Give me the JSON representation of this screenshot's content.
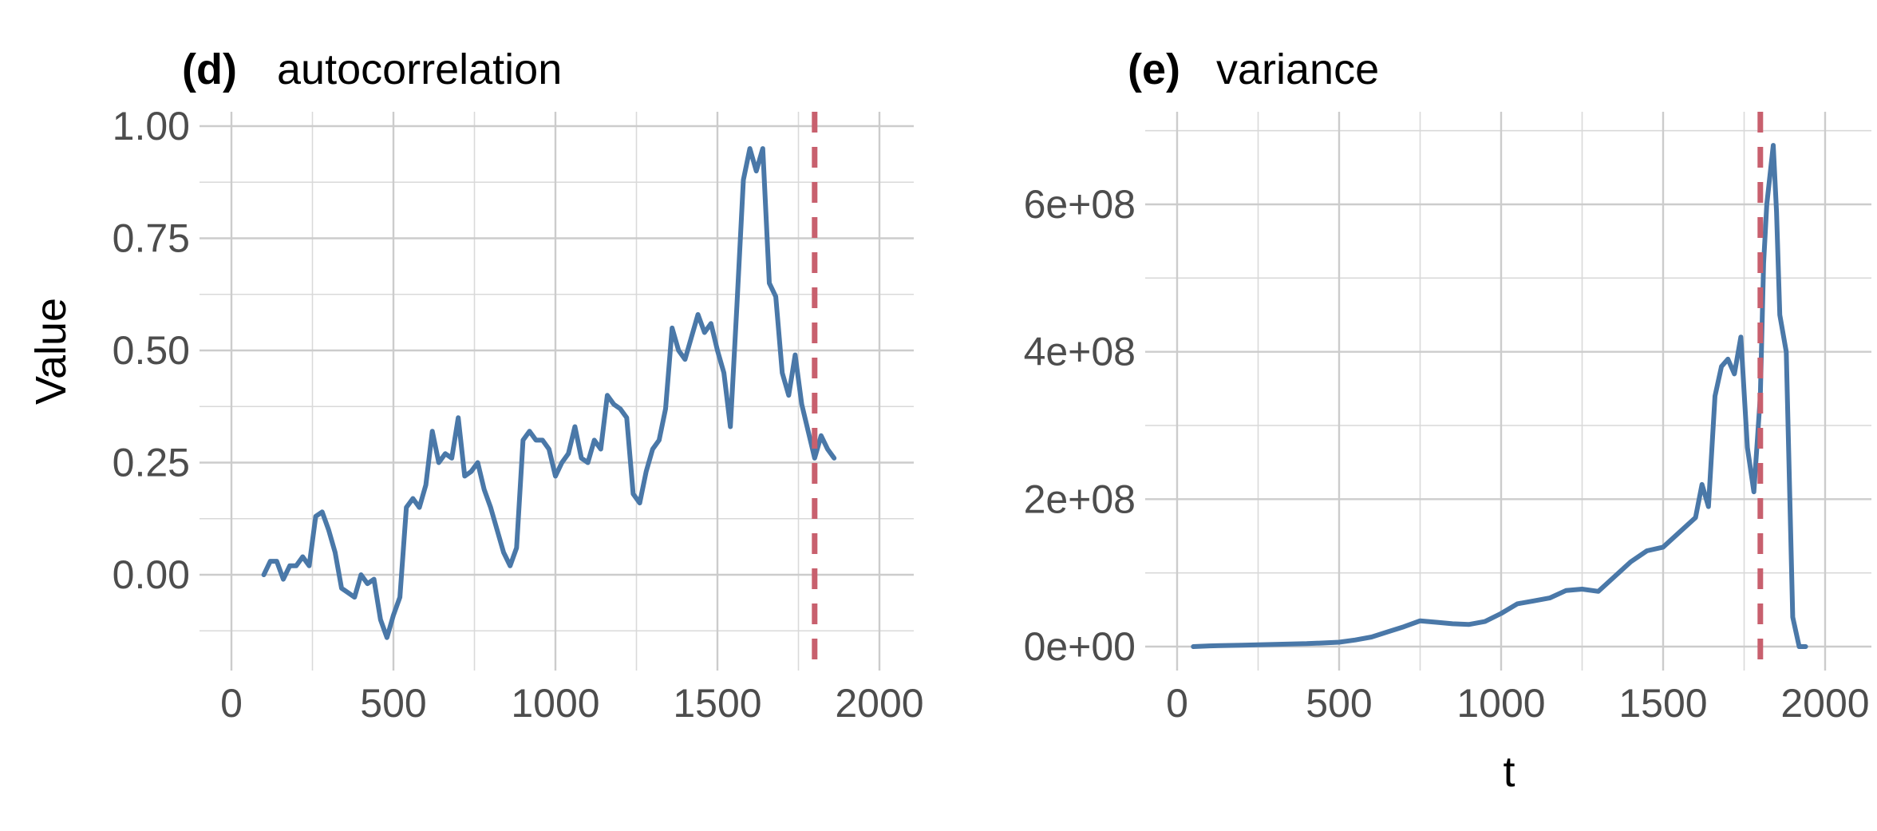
{
  "chart_data": [
    {
      "type": "line",
      "tag": "(d)",
      "title": "autocorrelation",
      "xlabel": "",
      "ylabel": "Value",
      "xlim": [
        0,
        2000
      ],
      "ylim": [
        -0.15,
        1.0
      ],
      "x_ticks": [
        0,
        500,
        1000,
        1500,
        2000
      ],
      "y_ticks": [
        0.0,
        0.25,
        0.5,
        0.75,
        1.0
      ],
      "y_tick_labels": [
        "0.00",
        "0.25",
        "0.50",
        "0.75",
        "1.00"
      ],
      "grid": true,
      "vline": 1800,
      "series_color": "#4a78a8",
      "vline_color": "#c8606e",
      "x": [
        100,
        120,
        140,
        160,
        180,
        200,
        220,
        240,
        260,
        280,
        300,
        320,
        340,
        360,
        380,
        400,
        420,
        440,
        460,
        480,
        500,
        520,
        540,
        560,
        580,
        600,
        620,
        640,
        660,
        680,
        700,
        720,
        740,
        760,
        780,
        800,
        820,
        840,
        860,
        880,
        900,
        920,
        940,
        960,
        980,
        1000,
        1020,
        1040,
        1060,
        1080,
        1100,
        1120,
        1140,
        1160,
        1180,
        1200,
        1220,
        1240,
        1260,
        1280,
        1300,
        1320,
        1340,
        1360,
        1380,
        1400,
        1420,
        1440,
        1460,
        1480,
        1500,
        1520,
        1540,
        1560,
        1580,
        1600,
        1620,
        1640,
        1660,
        1680,
        1700,
        1720,
        1740,
        1760,
        1780,
        1800,
        1820,
        1840,
        1860
      ],
      "y": [
        0.0,
        0.03,
        0.03,
        -0.01,
        0.02,
        0.02,
        0.04,
        0.02,
        0.13,
        0.14,
        0.1,
        0.05,
        -0.03,
        -0.04,
        -0.05,
        0.0,
        -0.02,
        -0.01,
        -0.1,
        -0.14,
        -0.09,
        -0.05,
        0.15,
        0.17,
        0.15,
        0.2,
        0.32,
        0.25,
        0.27,
        0.26,
        0.35,
        0.22,
        0.23,
        0.25,
        0.19,
        0.15,
        0.1,
        0.05,
        0.02,
        0.06,
        0.3,
        0.32,
        0.3,
        0.3,
        0.28,
        0.22,
        0.25,
        0.27,
        0.33,
        0.26,
        0.25,
        0.3,
        0.28,
        0.4,
        0.38,
        0.37,
        0.35,
        0.18,
        0.16,
        0.23,
        0.28,
        0.3,
        0.37,
        0.55,
        0.5,
        0.48,
        0.53,
        0.58,
        0.54,
        0.56,
        0.5,
        0.45,
        0.33,
        0.6,
        0.88,
        0.95,
        0.9,
        0.95,
        0.65,
        0.62,
        0.45,
        0.4,
        0.49,
        0.38,
        0.32,
        0.26,
        0.31,
        0.28,
        0.26
      ]
    },
    {
      "type": "line",
      "tag": "(e)",
      "title": "variance",
      "xlabel": "t",
      "ylabel": "",
      "xlim": [
        0,
        2000
      ],
      "ylim": [
        0,
        700000000
      ],
      "x_ticks": [
        0,
        500,
        1000,
        1500,
        2000
      ],
      "y_ticks": [
        0,
        200000000,
        400000000,
        600000000
      ],
      "y_tick_labels": [
        "0e+00",
        "2e+08",
        "4e+08",
        "6e+08"
      ],
      "grid": true,
      "vline": 1800,
      "series_color": "#4a78a8",
      "vline_color": "#c8606e",
      "x": [
        50,
        100,
        200,
        300,
        400,
        500,
        550,
        600,
        650,
        700,
        750,
        800,
        850,
        900,
        950,
        1000,
        1050,
        1100,
        1150,
        1200,
        1250,
        1300,
        1350,
        1400,
        1450,
        1500,
        1550,
        1600,
        1620,
        1640,
        1660,
        1680,
        1700,
        1720,
        1740,
        1760,
        1780,
        1800,
        1810,
        1820,
        1840,
        1850,
        1860,
        1880,
        1900,
        1920,
        1940
      ],
      "y": [
        0,
        1000000,
        2000000,
        3000000,
        4000000,
        6000000,
        9000000,
        13000000,
        20000000,
        27000000,
        35000000,
        33000000,
        31000000,
        30000000,
        34000000,
        45000000,
        58000000,
        62000000,
        66000000,
        76000000,
        78000000,
        75000000,
        95000000,
        115000000,
        130000000,
        135000000,
        155000000,
        175000000,
        220000000,
        190000000,
        340000000,
        380000000,
        390000000,
        370000000,
        420000000,
        270000000,
        210000000,
        340000000,
        520000000,
        600000000,
        680000000,
        590000000,
        450000000,
        400000000,
        40000000,
        0,
        0
      ]
    }
  ]
}
